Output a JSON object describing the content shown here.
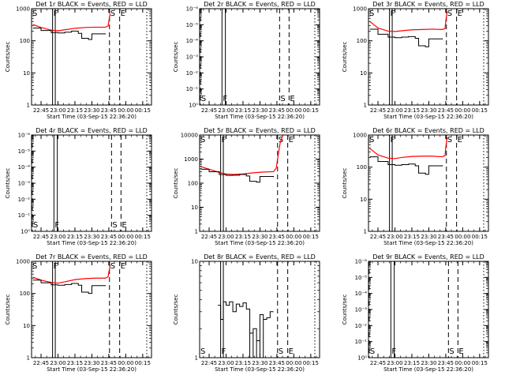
{
  "chart_data": [
    {
      "type": "line",
      "title": "Det 1r BLACK = Events, RED = LLD",
      "xlabel": "Start Time (03-Sep-15 22:36:20)",
      "ylabel": "Counts/sec",
      "yscale": "log",
      "ylim": [
        1,
        1000
      ],
      "ytick_labels": [
        "1000",
        "100",
        "10",
        "1"
      ],
      "xtick_labels": [
        "22:45",
        "23:00",
        "23:15",
        "23:30",
        "23:45",
        "00:00",
        "00:15"
      ],
      "xlim_hours": [
        22.61,
        24.38
      ],
      "markers": [
        {
          "label": "S",
          "x": 22.61
        },
        {
          "label": "F",
          "x": 22.92
        },
        {
          "label": "F",
          "x": 22.96
        },
        {
          "label": "S",
          "x": 23.76
        },
        {
          "label": "E",
          "x": 23.91
        }
      ],
      "dotted_x": [
        24.31
      ],
      "series": [
        {
          "color": "#ff0000",
          "x": [
            22.63,
            22.75,
            22.9,
            23.0,
            23.1,
            23.25,
            23.4,
            23.55,
            23.7,
            23.74,
            23.75,
            23.77
          ],
          "y": [
            320,
            260,
            215,
            205,
            220,
            245,
            260,
            265,
            265,
            290,
            400,
            700
          ]
        },
        {
          "color": "#000000",
          "x": [
            22.63,
            22.75,
            22.9,
            23.0,
            23.1,
            23.2,
            23.3,
            23.35,
            23.45,
            23.5,
            23.7
          ],
          "y": [
            250,
            210,
            180,
            175,
            185,
            200,
            170,
            120,
            110,
            165,
            160
          ]
        }
      ]
    },
    {
      "type": "line",
      "title": "Det 2r BLACK = Events, RED = LLD",
      "xlabel": "Start Time (03-Sep-15 22:36:20)",
      "ylabel": "Counts/sec",
      "yscale": "log",
      "ylim": [
        1,
        1000000
      ],
      "ytick_labels": [
        "10⁻⁶",
        "10⁻⁵",
        "10⁻⁴",
        "10⁻³",
        "10⁻²",
        "10⁻¹",
        "10⁰"
      ],
      "xtick_labels": [
        "22:45",
        "23:00",
        "23:15",
        "23:30",
        "23:45",
        "00:00",
        "00:15"
      ],
      "xlim_hours": [
        22.61,
        24.38
      ],
      "markers": [
        {
          "label": "S",
          "x": 22.62
        },
        {
          "label": "F",
          "x": 22.94
        },
        {
          "label": "F",
          "x": 22.99
        },
        {
          "label": "S",
          "x": 23.79
        },
        {
          "label": "E",
          "x": 23.93
        }
      ],
      "dotted_x": [
        24.31
      ],
      "series": []
    },
    {
      "type": "line",
      "title": "Det 3r BLACK = Events, RED = LLD",
      "xlabel": "Start Time (03-Sep-15 22:36:20)",
      "ylabel": "Counts/sec",
      "yscale": "log",
      "ylim": [
        1,
        1000
      ],
      "ytick_labels": [
        "1000",
        "100",
        "10",
        "1"
      ],
      "xtick_labels": [
        "22:45",
        "23:00",
        "23:15",
        "23:30",
        "23:45",
        "00:00",
        "00:15"
      ],
      "xlim_hours": [
        22.61,
        24.38
      ],
      "markers": [
        {
          "label": "S",
          "x": 22.61
        },
        {
          "label": "F",
          "x": 22.92
        },
        {
          "label": "F",
          "x": 22.96
        },
        {
          "label": "S",
          "x": 23.76
        },
        {
          "label": "E",
          "x": 23.91
        }
      ],
      "dotted_x": [
        24.31
      ],
      "series": [
        {
          "color": "#ff0000",
          "x": [
            22.63,
            22.75,
            22.9,
            23.0,
            23.1,
            23.25,
            23.4,
            23.55,
            23.7,
            23.74,
            23.75,
            23.77
          ],
          "y": [
            400,
            250,
            200,
            195,
            205,
            220,
            225,
            230,
            225,
            240,
            400,
            800
          ]
        },
        {
          "color": "#000000",
          "x": [
            22.63,
            22.75,
            22.9,
            23.0,
            23.1,
            23.2,
            23.3,
            23.35,
            23.45,
            23.5,
            23.7
          ],
          "y": [
            230,
            160,
            130,
            125,
            130,
            135,
            120,
            70,
            65,
            115,
            120
          ]
        }
      ]
    },
    {
      "type": "line",
      "title": "Det 4r BLACK = Events, RED = LLD",
      "xlabel": "Start Time (03-Sep-15 22:36:20)",
      "ylabel": "Counts/sec",
      "yscale": "log",
      "ylim": [
        1,
        1000000
      ],
      "ytick_labels": [
        "10⁻⁶",
        "10⁻⁵",
        "10⁻⁴",
        "10⁻³",
        "10⁻²",
        "10⁻¹",
        "10⁰"
      ],
      "xtick_labels": [
        "22:45",
        "23:00",
        "23:15",
        "23:30",
        "23:45",
        "00:00",
        "00:15"
      ],
      "xlim_hours": [
        22.61,
        24.38
      ],
      "markers": [
        {
          "label": "S",
          "x": 22.62
        },
        {
          "label": "F",
          "x": 22.94
        },
        {
          "label": "F",
          "x": 22.99
        },
        {
          "label": "S",
          "x": 23.79
        },
        {
          "label": "E",
          "x": 23.93
        }
      ],
      "dotted_x": [
        24.31
      ],
      "series": []
    },
    {
      "type": "line",
      "title": "Det 5r BLACK = Events, RED = LLD",
      "xlabel": "Start Time (03-Sep-15 22:36:20)",
      "ylabel": "Counts/sec",
      "yscale": "log",
      "ylim": [
        1,
        10000
      ],
      "ytick_labels": [
        "10000",
        "1000",
        "100",
        "10",
        "1"
      ],
      "xtick_labels": [
        "22:45",
        "23:00",
        "23:15",
        "23:30",
        "23:45",
        "00:00",
        "00:15"
      ],
      "xlim_hours": [
        22.61,
        24.38
      ],
      "markers": [
        {
          "label": "S",
          "x": 22.61
        },
        {
          "label": "F",
          "x": 22.92
        },
        {
          "label": "F",
          "x": 22.96
        },
        {
          "label": "S",
          "x": 23.76
        },
        {
          "label": "E",
          "x": 23.91
        }
      ],
      "dotted_x": [
        24.31
      ],
      "series": [
        {
          "color": "#ff0000",
          "x": [
            22.63,
            22.75,
            22.9,
            23.0,
            23.1,
            23.25,
            23.4,
            23.55,
            23.7,
            23.74,
            23.77,
            23.8,
            23.84
          ],
          "y": [
            480,
            380,
            280,
            240,
            230,
            240,
            270,
            290,
            300,
            420,
            1500,
            5000,
            10000
          ]
        },
        {
          "color": "#000000",
          "x": [
            22.63,
            22.75,
            22.9,
            23.0,
            23.1,
            23.2,
            23.3,
            23.35,
            23.45,
            23.5,
            23.7
          ],
          "y": [
            380,
            300,
            230,
            210,
            215,
            230,
            200,
            120,
            110,
            190,
            180
          ]
        }
      ]
    },
    {
      "type": "line",
      "title": "Det 6r BLACK = Events, RED = LLD",
      "xlabel": "Start Time (03-Sep-15 22:36:20)",
      "ylabel": "Counts/sec",
      "yscale": "log",
      "ylim": [
        1,
        1000
      ],
      "ytick_labels": [
        "1000",
        "100",
        "10",
        "1"
      ],
      "xtick_labels": [
        "22:45",
        "23:00",
        "23:15",
        "23:30",
        "23:45",
        "00:00",
        "00:15"
      ],
      "xlim_hours": [
        22.61,
        24.38
      ],
      "markers": [
        {
          "label": "S",
          "x": 22.61
        },
        {
          "label": "F",
          "x": 22.92
        },
        {
          "label": "F",
          "x": 22.96
        },
        {
          "label": "S",
          "x": 23.76
        },
        {
          "label": "E",
          "x": 23.91
        }
      ],
      "dotted_x": [
        24.31
      ],
      "series": [
        {
          "color": "#ff0000",
          "x": [
            22.63,
            22.75,
            22.9,
            23.0,
            23.1,
            23.25,
            23.4,
            23.55,
            23.7,
            23.74,
            23.75,
            23.77
          ],
          "y": [
            380,
            240,
            190,
            185,
            200,
            215,
            220,
            220,
            210,
            230,
            400,
            850
          ]
        },
        {
          "color": "#000000",
          "x": [
            22.63,
            22.75,
            22.9,
            23.0,
            23.1,
            23.2,
            23.3,
            23.35,
            23.45,
            23.5,
            23.7
          ],
          "y": [
            210,
            150,
            120,
            115,
            120,
            125,
            110,
            65,
            60,
            110,
            115
          ]
        }
      ]
    },
    {
      "type": "line",
      "title": "Det 7r BLACK = Events, RED = LLD",
      "xlabel": "Start Time (03-Sep-15 22:36:20)",
      "ylabel": "Counts/sec",
      "yscale": "log",
      "ylim": [
        1,
        1000
      ],
      "ytick_labels": [
        "1000",
        "100",
        "10",
        "1"
      ],
      "xtick_labels": [
        "22:45",
        "23:00",
        "23:15",
        "23:30",
        "23:45",
        "00:00",
        "00:15"
      ],
      "xlim_hours": [
        22.61,
        24.38
      ],
      "markers": [
        {
          "label": "S",
          "x": 22.61
        },
        {
          "label": "F",
          "x": 22.92
        },
        {
          "label": "F",
          "x": 22.96
        },
        {
          "label": "S",
          "x": 23.76
        },
        {
          "label": "E",
          "x": 23.91
        }
      ],
      "dotted_x": [
        24.31
      ],
      "series": [
        {
          "color": "#ff0000",
          "x": [
            22.63,
            22.75,
            22.9,
            23.0,
            23.1,
            23.25,
            23.4,
            23.55,
            23.7,
            23.74,
            23.75,
            23.77
          ],
          "y": [
            320,
            260,
            220,
            210,
            230,
            270,
            290,
            300,
            300,
            330,
            450,
            750
          ]
        },
        {
          "color": "#000000",
          "x": [
            22.63,
            22.75,
            22.9,
            23.0,
            23.1,
            23.2,
            23.3,
            23.35,
            23.45,
            23.5,
            23.7
          ],
          "y": [
            260,
            215,
            185,
            180,
            190,
            205,
            180,
            110,
            100,
            175,
            170
          ]
        }
      ]
    },
    {
      "type": "line",
      "title": "Det 8r BLACK = Events, RED = LLD",
      "xlabel": "Start Time (03-Sep-15 22:36:20)",
      "ylabel": "Counts/sec",
      "yscale": "log",
      "ylim": [
        1,
        10
      ],
      "ytick_labels": [
        "10",
        "1"
      ],
      "xtick_labels": [
        "22:45",
        "23:00",
        "23:15",
        "23:30",
        "23:45",
        "00:00",
        "00:15"
      ],
      "xlim_hours": [
        22.61,
        24.38
      ],
      "markers": [
        {
          "label": "S",
          "x": 22.61
        },
        {
          "label": "F",
          "x": 22.92
        },
        {
          "label": "F",
          "x": 22.96
        },
        {
          "label": "S",
          "x": 23.76
        },
        {
          "label": "E",
          "x": 23.91
        }
      ],
      "dotted_x": [
        24.31
      ],
      "series": [
        {
          "color": "#000000",
          "x": [
            22.88,
            22.92,
            22.96,
            23.0,
            23.05,
            23.1,
            23.15,
            23.2,
            23.25,
            23.3,
            23.35,
            23.4,
            23.45,
            23.5,
            23.55,
            23.6,
            23.65,
            23.7
          ],
          "y": [
            3.5,
            3.5,
            2.5,
            3.8,
            3.5,
            3.8,
            3.0,
            3.6,
            3.4,
            3.7,
            3.2,
            1.8,
            2.0,
            1.5,
            2.8,
            2.5,
            2.6,
            3.0
          ]
        }
      ]
    },
    {
      "type": "line",
      "title": "Det 9r BLACK = Events, RED = LLD",
      "xlabel": "Start Time (03-Sep-15 22:36:20)",
      "ylabel": "Counts/sec",
      "yscale": "log",
      "ylim": [
        1,
        1000000
      ],
      "ytick_labels": [
        "10⁻⁶",
        "10⁻⁵",
        "10⁻⁴",
        "10⁻³",
        "10⁻²",
        "10⁻¹",
        "10⁰"
      ],
      "xtick_labels": [
        "22:45",
        "23:00",
        "23:15",
        "23:30",
        "23:45",
        "00:00",
        "00:15"
      ],
      "xlim_hours": [
        22.61,
        24.38
      ],
      "markers": [
        {
          "label": "S",
          "x": 22.62
        },
        {
          "label": "F",
          "x": 22.94
        },
        {
          "label": "F",
          "x": 22.99
        },
        {
          "label": "S",
          "x": 23.79
        },
        {
          "label": "E",
          "x": 23.93
        }
      ],
      "dotted_x": [
        24.31
      ],
      "series": []
    }
  ]
}
